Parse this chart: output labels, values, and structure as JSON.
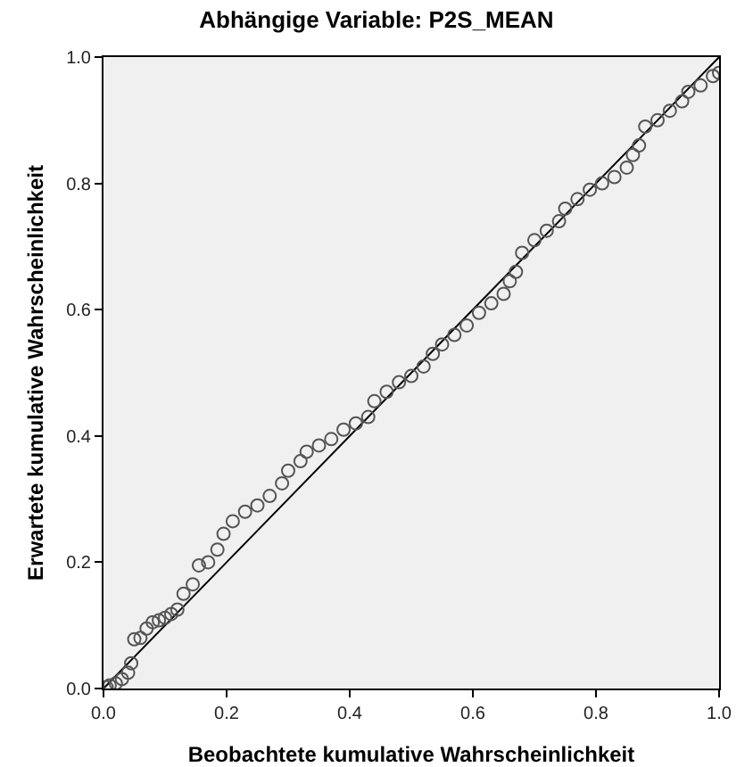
{
  "chart_data": {
    "type": "scatter",
    "title": "Abhängige Variable: P2S_MEAN",
    "xlabel": "Beobachtete kumulative Wahrscheinlichkeit",
    "ylabel": "Erwartete kumulative Wahrscheinlichkeit",
    "x": [
      0.005,
      0.01,
      0.02,
      0.03,
      0.04,
      0.045,
      0.05,
      0.06,
      0.07,
      0.08,
      0.09,
      0.1,
      0.11,
      0.12,
      0.13,
      0.145,
      0.155,
      0.17,
      0.185,
      0.195,
      0.21,
      0.23,
      0.25,
      0.27,
      0.29,
      0.3,
      0.32,
      0.33,
      0.35,
      0.37,
      0.39,
      0.41,
      0.43,
      0.44,
      0.46,
      0.48,
      0.5,
      0.52,
      0.535,
      0.55,
      0.57,
      0.59,
      0.61,
      0.63,
      0.65,
      0.66,
      0.67,
      0.68,
      0.7,
      0.72,
      0.74,
      0.75,
      0.77,
      0.79,
      0.81,
      0.83,
      0.85,
      0.86,
      0.87,
      0.88,
      0.9,
      0.92,
      0.94,
      0.95,
      0.97,
      0.99,
      1.0
    ],
    "series": [
      {
        "color": "#555555",
        "marker": "circle",
        "values": [
          0.002,
          0.005,
          0.008,
          0.015,
          0.025,
          0.04,
          0.078,
          0.08,
          0.095,
          0.105,
          0.108,
          0.112,
          0.118,
          0.125,
          0.15,
          0.165,
          0.195,
          0.2,
          0.22,
          0.245,
          0.265,
          0.28,
          0.29,
          0.305,
          0.325,
          0.345,
          0.36,
          0.375,
          0.385,
          0.395,
          0.41,
          0.42,
          0.43,
          0.455,
          0.47,
          0.485,
          0.495,
          0.51,
          0.53,
          0.545,
          0.56,
          0.575,
          0.595,
          0.61,
          0.625,
          0.645,
          0.66,
          0.69,
          0.71,
          0.725,
          0.74,
          0.76,
          0.775,
          0.79,
          0.8,
          0.81,
          0.825,
          0.845,
          0.86,
          0.89,
          0.9,
          0.915,
          0.93,
          0.945,
          0.955,
          0.97,
          0.975
        ]
      },
      {
        "type": "line",
        "color": "#000000",
        "marker": "none",
        "x": [
          0,
          1
        ],
        "values": [
          0,
          1
        ]
      }
    ],
    "xlim": [
      0,
      1
    ],
    "ylim": [
      0,
      1
    ],
    "xticks": [
      {
        "value": 0,
        "label": "0.0"
      },
      {
        "value": 0.2,
        "label": "0.2"
      },
      {
        "value": 0.4,
        "label": "0.4"
      },
      {
        "value": 0.6,
        "label": "0.6"
      },
      {
        "value": 0.8,
        "label": "0.8"
      },
      {
        "value": 1,
        "label": "1.0"
      }
    ],
    "yticks": [
      {
        "value": 0,
        "label": "0.0"
      },
      {
        "value": 0.2,
        "label": "0.2"
      },
      {
        "value": 0.4,
        "label": "0.4"
      },
      {
        "value": 0.6,
        "label": "0.6"
      },
      {
        "value": 0.8,
        "label": "0.8"
      },
      {
        "value": 1,
        "label": "1.0"
      }
    ],
    "grid": false
  }
}
